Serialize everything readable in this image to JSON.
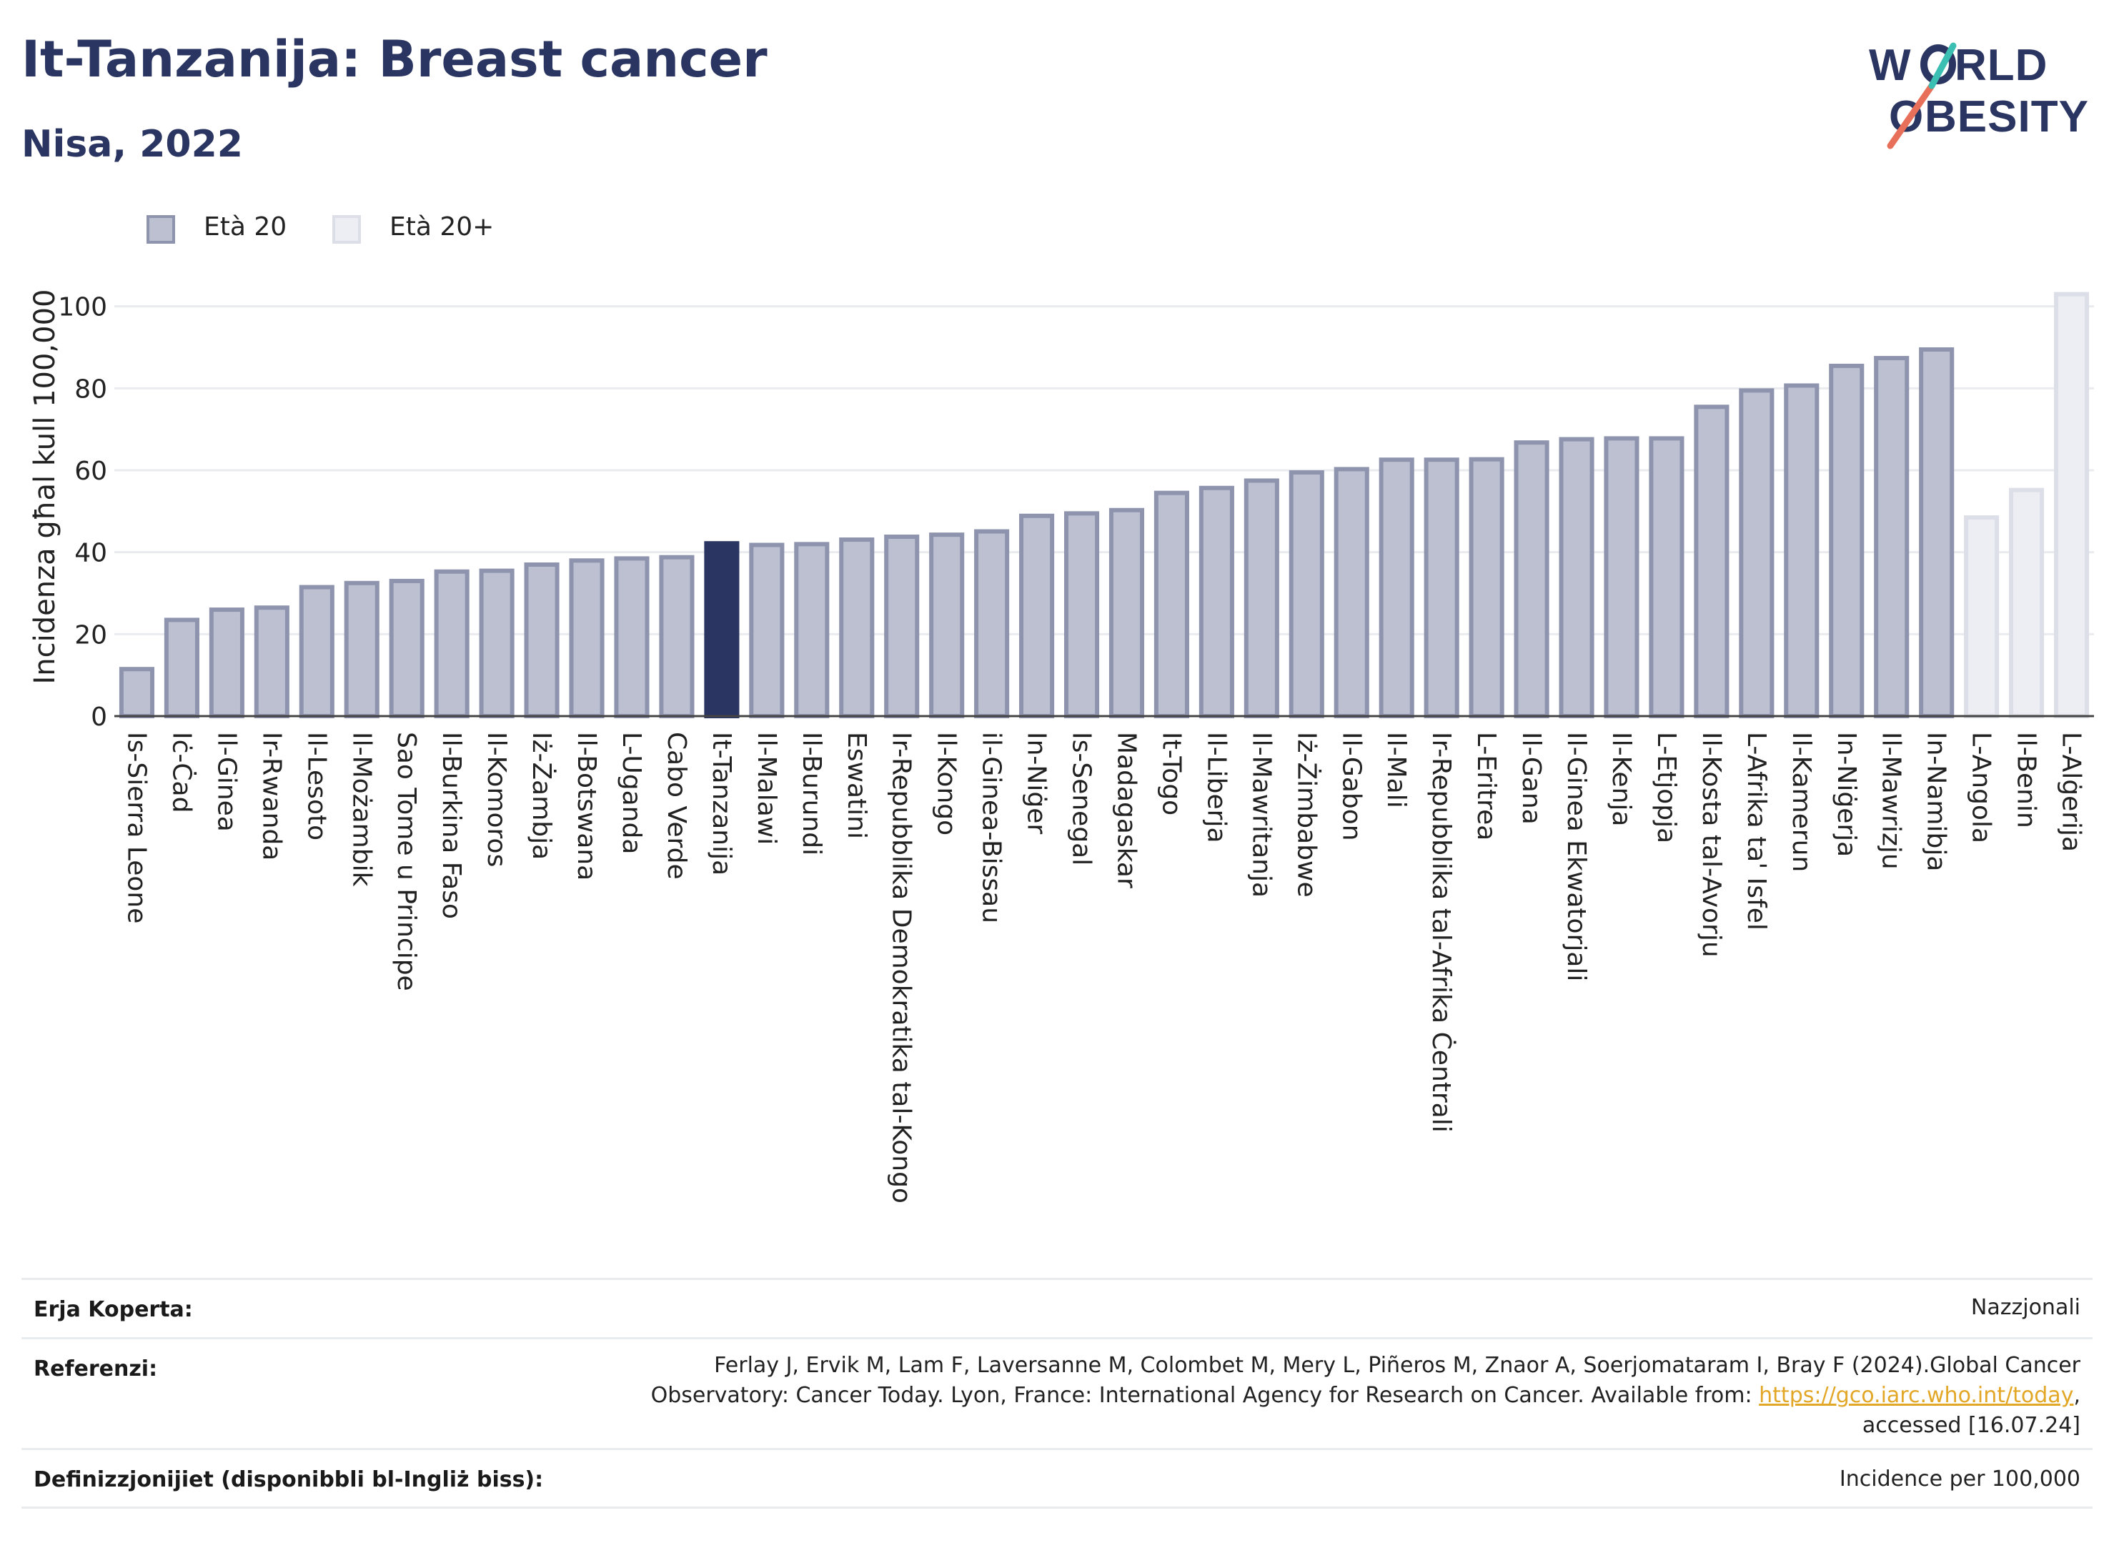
{
  "header": {
    "title": "It-Tanzanija: Breast cancer",
    "subtitle": "Nisa, 2022"
  },
  "logo": {
    "line1": "WORLD",
    "line2": "OBESITY",
    "text_color": "#2b3561",
    "slash_colors": [
      "#e8705a",
      "#3cbfb3"
    ]
  },
  "legend": {
    "items": [
      {
        "label": "Età 20",
        "color": "#bcc0d1",
        "border": "#8e94ad"
      },
      {
        "label": "Età 20+",
        "color": "#eceef3",
        "border": "#dcdfe8"
      }
    ]
  },
  "chart_data": {
    "type": "bar",
    "title": "It-Tanzanija: Breast cancer",
    "subtitle": "Nisa, 2022",
    "ylabel": "Incidenza għal kull 100,000",
    "ylim": [
      0,
      105
    ],
    "yticks": [
      0,
      20,
      40,
      60,
      80,
      100
    ],
    "grid": true,
    "legend_position": "top-left",
    "highlight": "It-Tanzanija",
    "highlight_color": "#2b3561",
    "colors": {
      "age20": "#bcc0d1",
      "age20_border": "#8e94ad",
      "age20plus": "#eceef3",
      "age20plus_border": "#dcdfe8"
    },
    "categories": [
      "Is-Sierra Leone",
      "Iċ-Ċad",
      "Il-Ginea",
      "Ir-Rwanda",
      "Il-Lesoto",
      "Il-Możambik",
      "Sao Tome u Principe",
      "Il-Burkina Faso",
      "Il-Komoros",
      "Iż-Żambja",
      "Il-Botswana",
      "L-Uganda",
      "Cabo Verde",
      "It-Tanzanija",
      "Il-Malawi",
      "Il-Burundi",
      "Eswatini",
      "Ir-Repubblika Demokratika tal-Kongo",
      "Il-Kongo",
      "il-Ginea-Bissau",
      "In-Niġer",
      "Is-Senegal",
      "Madagaskar",
      "It-Togo",
      "Il-Liberja",
      "Il-Mawritanja",
      "Iż-Żimbabwe",
      "Il-Gabon",
      "Il-Mali",
      "Ir-Repubblika tal-Afrika Ċentrali",
      "L-Eritrea",
      "Il-Gana",
      "Il-Ginea Ekwatorjali",
      "Il-Kenja",
      "L-Etjopja",
      "Il-Kosta tal-Avorju",
      "L-Afrika ta' Isfel",
      "Il-Kamerun",
      "In-Niġerja",
      "Il-Mawrizju",
      "In-Namibja",
      "L-Angola",
      "Il-Benin",
      "L-Alġerija"
    ],
    "series": [
      {
        "name": "Età 20",
        "values": [
          12,
          24,
          26.5,
          27,
          32,
          33,
          33.5,
          35.8,
          36,
          37.5,
          38.5,
          39,
          39.3,
          42.7,
          42.3,
          42.5,
          43.6,
          44.3,
          44.8,
          45.6,
          49.4,
          50,
          50.8,
          55,
          56.2,
          58,
          60,
          60.8,
          63.1,
          63.1,
          63.2,
          67.3,
          68.1,
          68.3,
          68.3,
          76,
          80,
          81.2,
          86,
          87.9,
          90,
          null,
          null,
          null
        ]
      },
      {
        "name": "Età 20+",
        "values": [
          null,
          null,
          null,
          null,
          null,
          null,
          null,
          null,
          null,
          null,
          null,
          null,
          null,
          null,
          null,
          null,
          null,
          null,
          null,
          null,
          null,
          null,
          null,
          null,
          null,
          null,
          null,
          null,
          null,
          null,
          null,
          null,
          null,
          null,
          null,
          null,
          null,
          null,
          null,
          null,
          null,
          49,
          55.7,
          103.5
        ]
      }
    ]
  },
  "info": {
    "coverage": {
      "label": "Erja Koperta:",
      "value": "Nazzjonali"
    },
    "references": {
      "label": "Referenzi:",
      "line1": "Ferlay J, Ervik M, Lam F, Laversanne M, Colombet M, Mery L, Piñeros M, Znaor A, Soerjomataram I, Bray F (2024).Global Cancer",
      "line2_prefix": "Observatory: Cancer Today. Lyon, France: International Agency for Research on Cancer. Available from: ",
      "link": "https://gco.iarc.who.int/today",
      "line2_suffix": ",",
      "line3": "accessed [16.07.24]"
    },
    "definitions": {
      "label": "Definizzjonijiet (disponibbli bl-Ingliż biss):",
      "value": "Incidence per 100,000"
    }
  }
}
